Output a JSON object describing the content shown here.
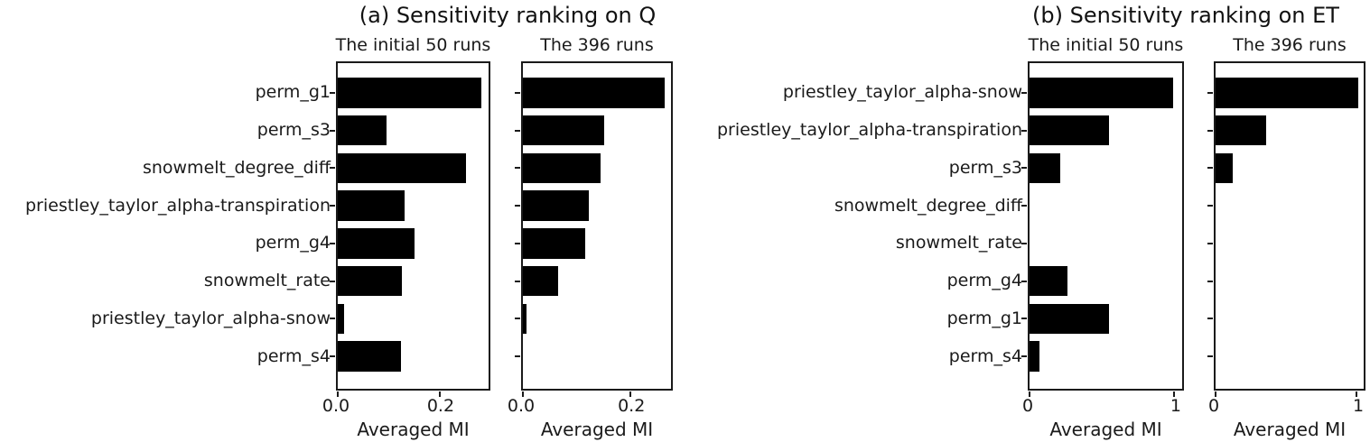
{
  "figure": {
    "background": "#ffffff",
    "bar_color": "#000000",
    "text_color": "#1a1a1a"
  },
  "chart_data": [
    {
      "type": "bar",
      "orientation": "horizontal",
      "title": "(a) Sensitivity ranking on Q",
      "xlabel": "Averaged MI",
      "grid": false,
      "legend": "none",
      "categories": [
        "perm_g1",
        "perm_s3",
        "snowmelt_degree_diff",
        "priestley_taylor_alpha-transpiration",
        "perm_g4",
        "snowmelt_rate",
        "priestley_taylor_alpha-snow",
        "perm_s4"
      ],
      "series": [
        {
          "name": "The initial 50 runs",
          "values": [
            0.28,
            0.095,
            0.25,
            0.131,
            0.15,
            0.126,
            0.012,
            0.123
          ],
          "xlim": [
            0,
            0.295
          ],
          "xticks": [
            0,
            0.2
          ],
          "xtick_labels": [
            "0.0",
            "0.2"
          ]
        },
        {
          "name": "The 396 runs",
          "values": [
            0.263,
            0.151,
            0.145,
            0.122,
            0.115,
            0.066,
            0.007,
            0.0
          ],
          "xlim": [
            0,
            0.275
          ],
          "xticks": [
            0,
            0.2
          ],
          "xtick_labels": [
            "0.0",
            "0.2"
          ]
        }
      ]
    },
    {
      "type": "bar",
      "orientation": "horizontal",
      "title": "(b) Sensitivity ranking on ET",
      "xlabel": "Averaged MI",
      "grid": false,
      "legend": "none",
      "categories": [
        "priestley_taylor_alpha-snow",
        "priestley_taylor_alpha-transpiration",
        "perm_s3",
        "snowmelt_degree_diff",
        "snowmelt_rate",
        "perm_g4",
        "perm_g1",
        "perm_s4"
      ],
      "series": [
        {
          "name": "The initial 50 runs",
          "values": [
            0.99,
            0.55,
            0.21,
            0.0,
            0.0,
            0.26,
            0.55,
            0.07
          ],
          "xlim": [
            0,
            1.055
          ],
          "xticks": [
            0,
            1
          ],
          "xtick_labels": [
            "0",
            "1"
          ]
        },
        {
          "name": "The 396 runs",
          "values": [
            1.01,
            0.36,
            0.12,
            0.0,
            0.0,
            0.0,
            0.0,
            0.0
          ],
          "xlim": [
            0,
            1.05
          ],
          "xticks": [
            0,
            1
          ],
          "xtick_labels": [
            "0",
            "1"
          ]
        }
      ]
    }
  ]
}
